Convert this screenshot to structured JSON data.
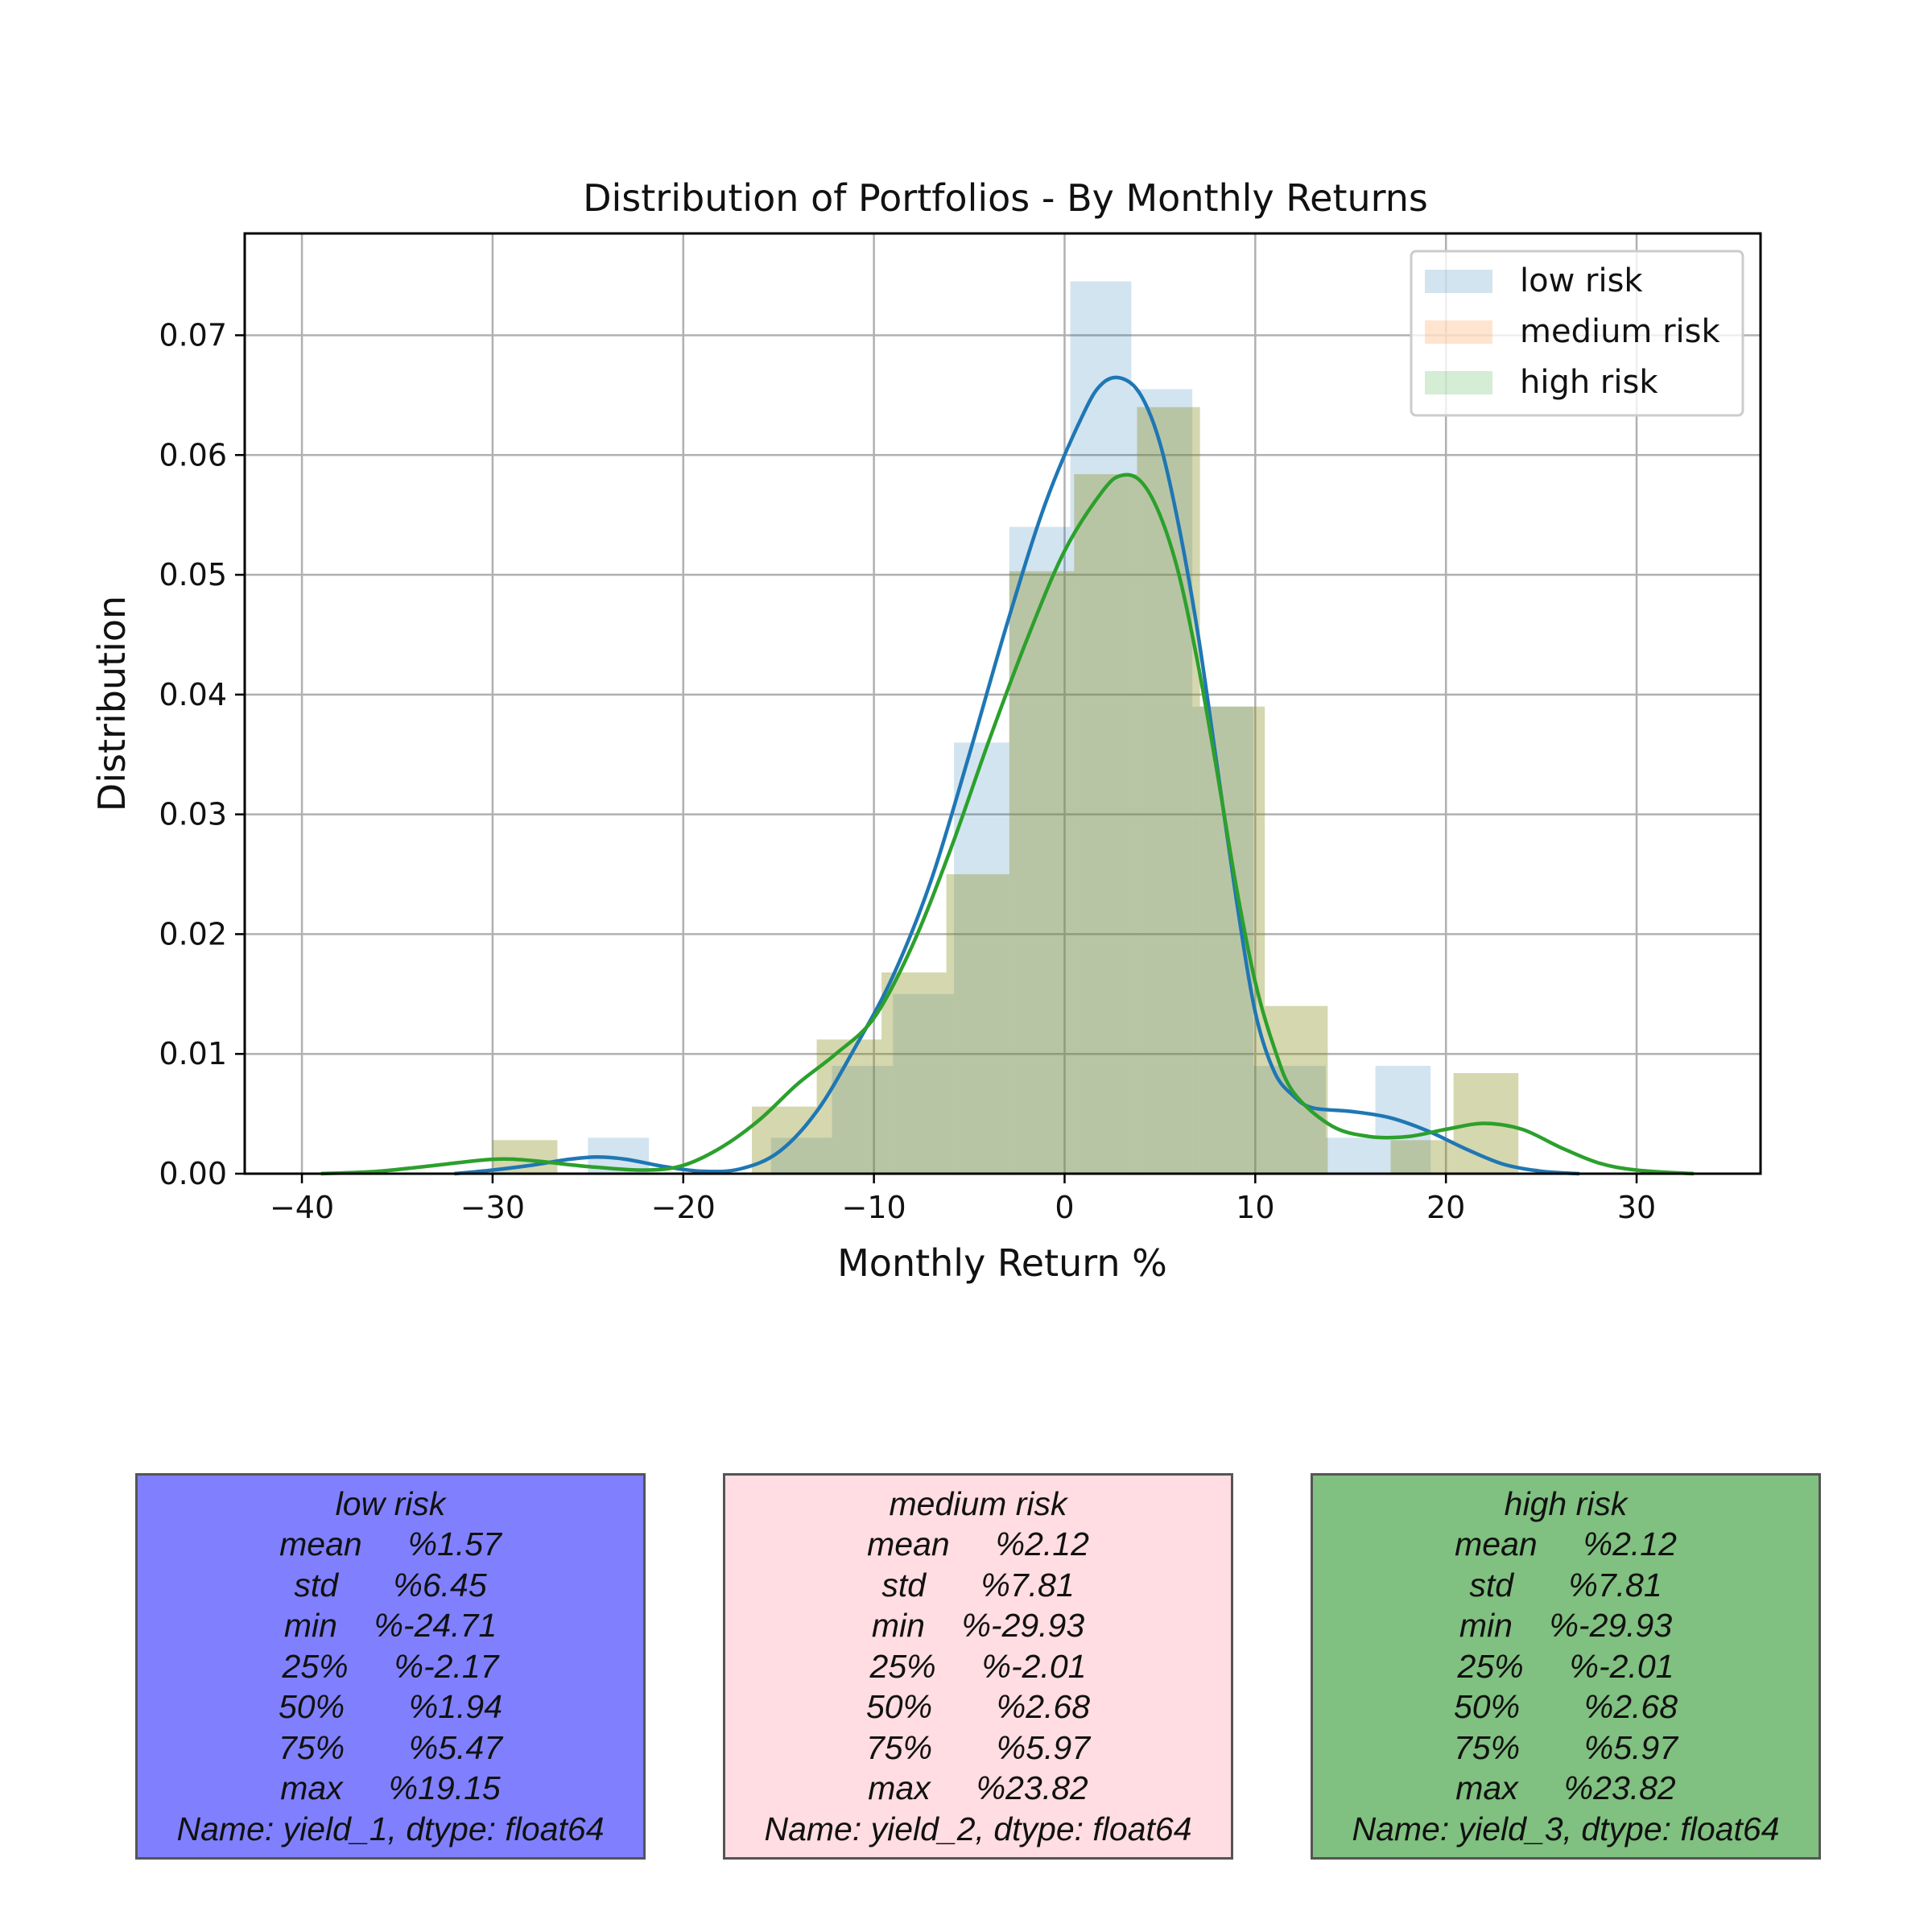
{
  "chart_data": {
    "type": "histogram",
    "title": "Distribution of Portfolios - By Monthly Returns",
    "xlabel": "Monthly Return %",
    "ylabel": "Distribution",
    "xlim": [
      -43,
      36.5
    ],
    "ylim": [
      0,
      0.0785
    ],
    "xticks": [
      -40,
      -30,
      -20,
      -10,
      0,
      10,
      20,
      30
    ],
    "xtick_labels": [
      "−40",
      "−30",
      "−20",
      "−10",
      "0",
      "10",
      "20",
      "30"
    ],
    "yticks": [
      0.0,
      0.01,
      0.02,
      0.03,
      0.04,
      0.05,
      0.06,
      0.07
    ],
    "ytick_labels": [
      "0.00",
      "0.01",
      "0.02",
      "0.03",
      "0.04",
      "0.05",
      "0.06",
      "0.07"
    ],
    "grid": true,
    "legend_position": "top-right",
    "series": [
      {
        "name": "low risk",
        "color": "#1f77b4",
        "bar_color": "#1f77b4",
        "bar_alpha": 0.2,
        "bins": [
          {
            "x0": -25.0,
            "x1": -21.8,
            "density": 0.003
          },
          {
            "x0": -21.8,
            "x1": -18.6,
            "density": 0.0
          },
          {
            "x0": -18.6,
            "x1": -15.4,
            "density": 0.0
          },
          {
            "x0": -15.4,
            "x1": -12.2,
            "density": 0.003
          },
          {
            "x0": -12.2,
            "x1": -9.0,
            "density": 0.009
          },
          {
            "x0": -9.0,
            "x1": -5.8,
            "density": 0.015
          },
          {
            "x0": -5.8,
            "x1": -2.9,
            "density": 0.036
          },
          {
            "x0": -2.9,
            "x1": 0.3,
            "density": 0.054
          },
          {
            "x0": 0.3,
            "x1": 3.5,
            "density": 0.0745
          },
          {
            "x0": 3.5,
            "x1": 6.7,
            "density": 0.0655
          },
          {
            "x0": 6.7,
            "x1": 9.9,
            "density": 0.039
          },
          {
            "x0": 9.9,
            "x1": 13.7,
            "density": 0.009
          },
          {
            "x0": 13.7,
            "x1": 16.3,
            "density": 0.003
          },
          {
            "x0": 16.3,
            "x1": 19.2,
            "density": 0.009
          }
        ],
        "kde": [
          [
            -32,
            0.0
          ],
          [
            -30,
            0.0003
          ],
          [
            -28,
            0.0007
          ],
          [
            -26,
            0.0012
          ],
          [
            -24.5,
            0.0014
          ],
          [
            -23,
            0.0012
          ],
          [
            -21,
            0.0006
          ],
          [
            -19,
            0.0002
          ],
          [
            -17,
            0.0004
          ],
          [
            -15,
            0.0018
          ],
          [
            -13,
            0.0052
          ],
          [
            -11,
            0.0105
          ],
          [
            -9,
            0.0165
          ],
          [
            -7,
            0.0245
          ],
          [
            -5,
            0.035
          ],
          [
            -3,
            0.046
          ],
          [
            -1,
            0.056
          ],
          [
            1,
            0.0635
          ],
          [
            2,
            0.066
          ],
          [
            3,
            0.0664
          ],
          [
            4,
            0.065
          ],
          [
            5,
            0.061
          ],
          [
            6,
            0.054
          ],
          [
            7,
            0.045
          ],
          [
            8,
            0.034
          ],
          [
            9,
            0.023
          ],
          [
            10,
            0.0135
          ],
          [
            11,
            0.0085
          ],
          [
            12,
            0.0065
          ],
          [
            13,
            0.0055
          ],
          [
            15,
            0.0052
          ],
          [
            17,
            0.0047
          ],
          [
            19,
            0.0036
          ],
          [
            21,
            0.0021
          ],
          [
            23,
            0.0008
          ],
          [
            25,
            0.0002
          ],
          [
            27,
            0.0
          ]
        ]
      },
      {
        "name": "medium risk",
        "color": "#ff7f0e",
        "bar_color": "#ff7f0e",
        "bar_alpha": 0.2,
        "bins": [
          {
            "x0": -30.0,
            "x1": -26.6,
            "density": 0.0028
          },
          {
            "x0": -26.6,
            "x1": -23.2,
            "density": 0.0
          },
          {
            "x0": -23.2,
            "x1": -19.8,
            "density": 0.0
          },
          {
            "x0": -19.8,
            "x1": -16.4,
            "density": 0.0
          },
          {
            "x0": -16.4,
            "x1": -13.0,
            "density": 0.0056
          },
          {
            "x0": -13.0,
            "x1": -9.6,
            "density": 0.0112
          },
          {
            "x0": -9.6,
            "x1": -6.2,
            "density": 0.0168
          },
          {
            "x0": -6.2,
            "x1": -2.9,
            "density": 0.025
          },
          {
            "x0": -2.9,
            "x1": 0.5,
            "density": 0.0503
          },
          {
            "x0": 0.5,
            "x1": 3.8,
            "density": 0.0584
          },
          {
            "x0": 3.8,
            "x1": 7.1,
            "density": 0.064
          },
          {
            "x0": 7.1,
            "x1": 10.5,
            "density": 0.039
          },
          {
            "x0": 10.5,
            "x1": 13.8,
            "density": 0.014
          },
          {
            "x0": 13.8,
            "x1": 17.1,
            "density": 0.0
          },
          {
            "x0": 17.1,
            "x1": 20.4,
            "density": 0.0028
          },
          {
            "x0": 20.4,
            "x1": 23.8,
            "density": 0.0084
          }
        ]
      },
      {
        "name": "high risk",
        "color": "#2ca02c",
        "bar_color": "#2ca02c",
        "bar_alpha": 0.2,
        "bins": [
          {
            "x0": -30.0,
            "x1": -26.6,
            "density": 0.0028
          },
          {
            "x0": -26.6,
            "x1": -23.2,
            "density": 0.0
          },
          {
            "x0": -23.2,
            "x1": -19.8,
            "density": 0.0
          },
          {
            "x0": -19.8,
            "x1": -16.4,
            "density": 0.0
          },
          {
            "x0": -16.4,
            "x1": -13.0,
            "density": 0.0056
          },
          {
            "x0": -13.0,
            "x1": -9.6,
            "density": 0.0112
          },
          {
            "x0": -9.6,
            "x1": -6.2,
            "density": 0.0168
          },
          {
            "x0": -6.2,
            "x1": -2.9,
            "density": 0.025
          },
          {
            "x0": -2.9,
            "x1": 0.5,
            "density": 0.0503
          },
          {
            "x0": 0.5,
            "x1": 3.8,
            "density": 0.0584
          },
          {
            "x0": 3.8,
            "x1": 7.1,
            "density": 0.064
          },
          {
            "x0": 7.1,
            "x1": 10.5,
            "density": 0.039
          },
          {
            "x0": 10.5,
            "x1": 13.8,
            "density": 0.014
          },
          {
            "x0": 13.8,
            "x1": 17.1,
            "density": 0.0
          },
          {
            "x0": 17.1,
            "x1": 20.4,
            "density": 0.0028
          },
          {
            "x0": 20.4,
            "x1": 23.8,
            "density": 0.0084
          }
        ],
        "kde": [
          [
            -39,
            0.0
          ],
          [
            -36,
            0.0002
          ],
          [
            -33,
            0.0007
          ],
          [
            -30,
            0.0012
          ],
          [
            -28,
            0.0011
          ],
          [
            -25,
            0.0006
          ],
          [
            -22,
            0.0003
          ],
          [
            -20,
            0.0007
          ],
          [
            -18,
            0.0022
          ],
          [
            -16,
            0.0045
          ],
          [
            -14,
            0.0075
          ],
          [
            -12,
            0.01
          ],
          [
            -10,
            0.013
          ],
          [
            -8,
            0.019
          ],
          [
            -6,
            0.027
          ],
          [
            -4,
            0.036
          ],
          [
            -2,
            0.0445
          ],
          [
            0,
            0.052
          ],
          [
            2,
            0.057
          ],
          [
            3,
            0.0583
          ],
          [
            4,
            0.0578
          ],
          [
            5,
            0.055
          ],
          [
            6,
            0.05
          ],
          [
            7,
            0.0425
          ],
          [
            8,
            0.0335
          ],
          [
            9,
            0.024
          ],
          [
            10,
            0.016
          ],
          [
            11,
            0.0105
          ],
          [
            12,
            0.0068
          ],
          [
            14,
            0.004
          ],
          [
            16,
            0.0031
          ],
          [
            18,
            0.0031
          ],
          [
            20,
            0.0037
          ],
          [
            22,
            0.0042
          ],
          [
            24,
            0.0037
          ],
          [
            26,
            0.0022
          ],
          [
            28,
            0.0009
          ],
          [
            30,
            0.0003
          ],
          [
            33,
            0.0
          ]
        ]
      }
    ]
  },
  "stats_boxes": [
    {
      "title": "low risk",
      "rows": [
        "mean     %1.57",
        "std      %6.45",
        "min    %-24.71",
        "25%     %-2.17",
        "50%       %1.94",
        "75%       %5.47",
        "max     %19.15"
      ],
      "footer": "Name: yield_1, dtype: float64",
      "color": "#8080ff"
    },
    {
      "title": "medium risk",
      "rows": [
        "mean     %2.12",
        "std      %7.81",
        "min    %-29.93",
        "25%     %-2.01",
        "50%       %2.68",
        "75%       %5.97",
        "max     %23.82"
      ],
      "footer": "Name: yield_2, dtype: float64",
      "color": "#ffdde2"
    },
    {
      "title": "high risk",
      "rows": [
        "mean     %2.12",
        "std      %7.81",
        "min    %-29.93",
        "25%     %-2.01",
        "50%       %2.68",
        "75%       %5.97",
        "max     %23.82"
      ],
      "footer": "Name: yield_3, dtype: float64",
      "color": "#80c080"
    }
  ]
}
